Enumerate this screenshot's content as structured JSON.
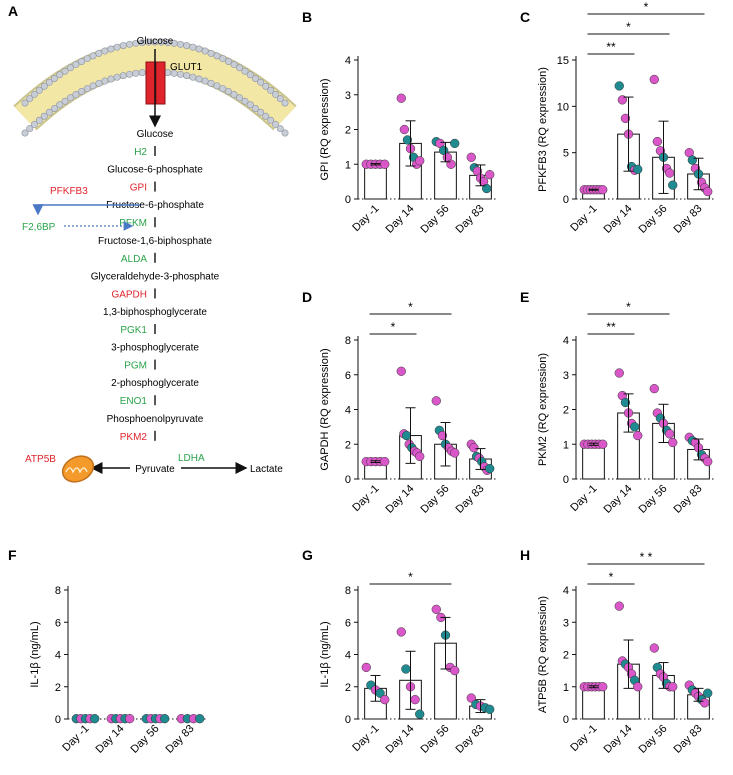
{
  "colors": {
    "pink": "#d957c8",
    "teal": "#1f8a90",
    "red": "#e0242c",
    "green": "#2aa34a",
    "blue": "#4a78c4",
    "membrane": "#f3e7a6",
    "mito": "#f39a2b"
  },
  "pathway": {
    "panel_label": "A",
    "glucose_top": "Glucose",
    "transporter": "GLUT1",
    "steps": [
      {
        "metabolite": "Glucose",
        "enzyme": "H2",
        "enzyme_color": "green"
      },
      {
        "metabolite": "Glucose-6-phosphate",
        "enzyme": "GPI",
        "enzyme_color": "red"
      },
      {
        "metabolite": "Fructose-6-phosphate",
        "enzyme": "PFKM",
        "enzyme_color": "green"
      },
      {
        "metabolite": "Fructose-1,6-biphosphate",
        "enzyme": "ALDA",
        "enzyme_color": "green"
      },
      {
        "metabolite": "Glyceraldehyde-3-phosphate",
        "enzyme": "GAPDH",
        "enzyme_color": "red"
      },
      {
        "metabolite": "1,3-biphosphoglycerate",
        "enzyme": "PGK1",
        "enzyme_color": "green"
      },
      {
        "metabolite": "3-phosphoglycerate",
        "enzyme": "PGM",
        "enzyme_color": "green"
      },
      {
        "metabolite": "2-phosphoglycerate",
        "enzyme": "ENO1",
        "enzyme_color": "green"
      },
      {
        "metabolite": "Phosphoenolpyruvate",
        "enzyme": "PKM2",
        "enzyme_color": "red"
      }
    ],
    "pfkfb3": "PFKFB3",
    "f26bp": "F2,6BP",
    "pyruvate": "Pyruvate",
    "lactate": "Lactate",
    "ldha": "LDHA",
    "atp5b": "ATP5B"
  },
  "chart_data": [
    {
      "id": "B",
      "type": "bar",
      "ylabel": "GPI (RQ expression)",
      "ylim": [
        0,
        4
      ],
      "yticks": [
        0,
        1,
        2,
        3,
        4
      ],
      "categories": [
        "Day -1",
        "Day 14",
        "Day 56",
        "Day 83"
      ],
      "values": [
        1.0,
        1.6,
        1.35,
        0.68
      ],
      "errors": [
        0.02,
        0.65,
        0.28,
        0.3
      ],
      "points": [
        [
          [
            1,
            "pink"
          ],
          [
            1,
            "pink"
          ],
          [
            1,
            "pink"
          ],
          [
            1,
            "pink"
          ],
          [
            1,
            "pink"
          ]
        ],
        [
          [
            2.9,
            "pink"
          ],
          [
            2.0,
            "pink"
          ],
          [
            1.7,
            "teal"
          ],
          [
            1.45,
            "pink"
          ],
          [
            1.2,
            "teal"
          ],
          [
            1.0,
            "pink"
          ],
          [
            1.1,
            "pink"
          ]
        ],
        [
          [
            1.65,
            "teal"
          ],
          [
            1.6,
            "pink"
          ],
          [
            1.4,
            "teal"
          ],
          [
            1.2,
            "pink"
          ],
          [
            1.0,
            "pink"
          ],
          [
            1.6,
            "teal"
          ]
        ],
        [
          [
            1.2,
            "pink"
          ],
          [
            0.9,
            "teal"
          ],
          [
            0.8,
            "pink"
          ],
          [
            0.6,
            "pink"
          ],
          [
            0.5,
            "pink"
          ],
          [
            0.3,
            "teal"
          ],
          [
            0.7,
            "pink"
          ]
        ]
      ],
      "sig": []
    },
    {
      "id": "C",
      "type": "bar",
      "ylabel": "PFKFB3 (RQ expression)",
      "ylim": [
        0,
        15
      ],
      "yticks": [
        0,
        5,
        10,
        15
      ],
      "categories": [
        "Day -1",
        "Day 14",
        "Day 56",
        "Day 83"
      ],
      "values": [
        1.0,
        7.0,
        4.5,
        2.7
      ],
      "errors": [
        0.05,
        4.0,
        3.9,
        1.7
      ],
      "points": [
        [
          [
            1,
            "pink"
          ],
          [
            1,
            "pink"
          ],
          [
            1,
            "pink"
          ],
          [
            1,
            "pink"
          ],
          [
            1,
            "pink"
          ],
          [
            1,
            "pink"
          ],
          [
            1,
            "pink"
          ]
        ],
        [
          [
            12.2,
            "teal"
          ],
          [
            10.7,
            "pink"
          ],
          [
            8.7,
            "pink"
          ],
          [
            7.0,
            "pink"
          ],
          [
            3.5,
            "teal"
          ],
          [
            3.1,
            "pink"
          ],
          [
            3.2,
            "teal"
          ]
        ],
        [
          [
            12.9,
            "pink"
          ],
          [
            6.2,
            "pink"
          ],
          [
            5.2,
            "pink"
          ],
          [
            4.5,
            "teal"
          ],
          [
            3.3,
            "pink"
          ],
          [
            2.8,
            "pink"
          ],
          [
            1.5,
            "teal"
          ]
        ],
        [
          [
            5.0,
            "pink"
          ],
          [
            4.2,
            "teal"
          ],
          [
            3.3,
            "pink"
          ],
          [
            2.7,
            "teal"
          ],
          [
            1.8,
            "pink"
          ],
          [
            1.2,
            "pink"
          ],
          [
            0.8,
            "pink"
          ]
        ]
      ],
      "sig": [
        {
          "from": 0,
          "to": 1,
          "label": "**",
          "level": 0
        },
        {
          "from": 0,
          "to": 2,
          "label": "*",
          "level": 1
        },
        {
          "from": 0,
          "to": 3,
          "label": "*",
          "level": 2
        }
      ]
    },
    {
      "id": "D",
      "type": "bar",
      "ylabel": "GAPDH (RQ  expression)",
      "ylim": [
        0,
        8
      ],
      "yticks": [
        0,
        2,
        4,
        6,
        8
      ],
      "categories": [
        "Day -1",
        "Day 14",
        "Day 56",
        "Day 83"
      ],
      "values": [
        1.0,
        2.5,
        2.0,
        1.15
      ],
      "errors": [
        0.05,
        1.6,
        1.25,
        0.6
      ],
      "points": [
        [
          [
            1,
            "pink"
          ],
          [
            1,
            "pink"
          ],
          [
            1,
            "pink"
          ],
          [
            1,
            "pink"
          ],
          [
            1,
            "pink"
          ]
        ],
        [
          [
            6.2,
            "pink"
          ],
          [
            2.6,
            "pink"
          ],
          [
            2.5,
            "teal"
          ],
          [
            2.0,
            "pink"
          ],
          [
            1.8,
            "teal"
          ],
          [
            1.6,
            "pink"
          ],
          [
            1.5,
            "pink"
          ],
          [
            1.3,
            "pink"
          ]
        ],
        [
          [
            4.5,
            "pink"
          ],
          [
            2.8,
            "teal"
          ],
          [
            2.5,
            "pink"
          ],
          [
            2.0,
            "teal"
          ],
          [
            1.8,
            "pink"
          ],
          [
            1.6,
            "pink"
          ],
          [
            1.5,
            "pink"
          ]
        ],
        [
          [
            2.0,
            "pink"
          ],
          [
            1.8,
            "pink"
          ],
          [
            1.3,
            "teal"
          ],
          [
            1.2,
            "pink"
          ],
          [
            1.0,
            "teal"
          ],
          [
            0.7,
            "pink"
          ],
          [
            0.5,
            "pink"
          ],
          [
            0.6,
            "teal"
          ]
        ]
      ],
      "sig": [
        {
          "from": 0,
          "to": 1,
          "label": "*",
          "level": 0
        },
        {
          "from": 0,
          "to": 2,
          "label": "*",
          "level": 1
        }
      ]
    },
    {
      "id": "E",
      "type": "bar",
      "ylabel": "PKM2 (RQ expression)",
      "ylim": [
        0,
        4
      ],
      "yticks": [
        0,
        1,
        2,
        3,
        4
      ],
      "categories": [
        "Day -1",
        "Day 14",
        "Day 56",
        "Day 83"
      ],
      "values": [
        1.0,
        1.9,
        1.6,
        0.85
      ],
      "errors": [
        0.03,
        0.55,
        0.55,
        0.3
      ],
      "points": [
        [
          [
            1,
            "pink"
          ],
          [
            1,
            "pink"
          ],
          [
            1,
            "pink"
          ],
          [
            1,
            "pink"
          ],
          [
            1,
            "pink"
          ],
          [
            1,
            "pink"
          ]
        ],
        [
          [
            3.05,
            "pink"
          ],
          [
            2.4,
            "pink"
          ],
          [
            2.2,
            "teal"
          ],
          [
            1.9,
            "pink"
          ],
          [
            1.6,
            "pink"
          ],
          [
            1.5,
            "teal"
          ],
          [
            1.25,
            "pink"
          ]
        ],
        [
          [
            2.6,
            "pink"
          ],
          [
            1.9,
            "pink"
          ],
          [
            1.75,
            "teal"
          ],
          [
            1.6,
            "pink"
          ],
          [
            1.4,
            "teal"
          ],
          [
            1.3,
            "pink"
          ],
          [
            1.05,
            "pink"
          ]
        ],
        [
          [
            1.2,
            "pink"
          ],
          [
            1.1,
            "teal"
          ],
          [
            1.05,
            "pink"
          ],
          [
            0.9,
            "pink"
          ],
          [
            0.7,
            "teal"
          ],
          [
            0.6,
            "pink"
          ],
          [
            0.5,
            "pink"
          ]
        ]
      ],
      "sig": [
        {
          "from": 0,
          "to": 1,
          "label": "**",
          "level": 0
        },
        {
          "from": 0,
          "to": 2,
          "label": "*",
          "level": 1
        }
      ]
    },
    {
      "id": "F",
      "type": "bar",
      "ylabel": "IL-1β (ng/mL)",
      "ylim": [
        0,
        8
      ],
      "yticks": [
        0,
        2,
        4,
        6,
        8
      ],
      "categories": [
        "Day -1",
        "Day 14",
        "Day 56",
        "Day 83"
      ],
      "values": [
        0.02,
        0.02,
        0.02,
        0.02
      ],
      "errors": [
        0,
        0,
        0,
        0
      ],
      "points": [
        [
          [
            0.02,
            "teal"
          ],
          [
            0.02,
            "pink"
          ],
          [
            0.02,
            "teal"
          ],
          [
            0.02,
            "pink"
          ],
          [
            0.02,
            "teal"
          ]
        ],
        [
          [
            0.02,
            "pink"
          ],
          [
            0.02,
            "teal"
          ],
          [
            0.02,
            "pink"
          ],
          [
            0.02,
            "teal"
          ],
          [
            0.02,
            "pink"
          ]
        ],
        [
          [
            0.02,
            "teal"
          ],
          [
            0.02,
            "pink"
          ],
          [
            0.02,
            "teal"
          ],
          [
            0.02,
            "pink"
          ],
          [
            0.02,
            "teal"
          ]
        ],
        [
          [
            0.02,
            "pink"
          ],
          [
            0.02,
            "teal"
          ],
          [
            0.02,
            "pink"
          ],
          [
            0.02,
            "teal"
          ]
        ]
      ],
      "sig": []
    },
    {
      "id": "G",
      "type": "bar",
      "ylabel": "IL-1β (ng/mL)",
      "ylim": [
        0,
        8
      ],
      "yticks": [
        0,
        2,
        4,
        6,
        8
      ],
      "categories": [
        "Day -1",
        "Day 14",
        "Day 56",
        "Day 83"
      ],
      "values": [
        1.9,
        2.4,
        4.7,
        0.8
      ],
      "errors": [
        0.8,
        1.8,
        1.6,
        0.4
      ],
      "points": [
        [
          [
            3.2,
            "pink"
          ],
          [
            2.1,
            "teal"
          ],
          [
            1.8,
            "pink"
          ],
          [
            1.6,
            "teal"
          ],
          [
            1.2,
            "pink"
          ]
        ],
        [
          [
            5.4,
            "pink"
          ],
          [
            3.1,
            "teal"
          ],
          [
            2.0,
            "pink"
          ],
          [
            1.2,
            "pink"
          ],
          [
            0.3,
            "teal"
          ]
        ],
        [
          [
            6.8,
            "pink"
          ],
          [
            6.3,
            "pink"
          ],
          [
            5.2,
            "teal"
          ],
          [
            3.2,
            "pink"
          ],
          [
            3.0,
            "pink"
          ]
        ],
        [
          [
            1.3,
            "pink"
          ],
          [
            0.9,
            "teal"
          ],
          [
            0.8,
            "pink"
          ],
          [
            0.7,
            "teal"
          ],
          [
            0.6,
            "teal"
          ]
        ]
      ],
      "sig": [
        {
          "from": 0,
          "to": 2,
          "label": "*",
          "level": 0
        }
      ]
    },
    {
      "id": "H",
      "type": "bar",
      "ylabel": "ATP5B (RQ expression)",
      "ylim": [
        0,
        4
      ],
      "yticks": [
        0,
        1,
        2,
        3,
        4
      ],
      "categories": [
        "Day -1",
        "Day 14",
        "Day 56",
        "Day 83"
      ],
      "values": [
        1.0,
        1.7,
        1.35,
        0.75
      ],
      "errors": [
        0.03,
        0.75,
        0.4,
        0.2
      ],
      "points": [
        [
          [
            1,
            "pink"
          ],
          [
            1,
            "pink"
          ],
          [
            1,
            "pink"
          ],
          [
            1,
            "pink"
          ],
          [
            1,
            "pink"
          ],
          [
            1,
            "pink"
          ]
        ],
        [
          [
            3.5,
            "pink"
          ],
          [
            1.8,
            "pink"
          ],
          [
            1.7,
            "teal"
          ],
          [
            1.6,
            "pink"
          ],
          [
            1.4,
            "pink"
          ],
          [
            1.2,
            "teal"
          ],
          [
            1.0,
            "pink"
          ]
        ],
        [
          [
            2.2,
            "pink"
          ],
          [
            1.6,
            "teal"
          ],
          [
            1.4,
            "pink"
          ],
          [
            1.3,
            "pink"
          ],
          [
            1.1,
            "teal"
          ],
          [
            1.0,
            "pink"
          ],
          [
            1.0,
            "pink"
          ]
        ],
        [
          [
            1.05,
            "pink"
          ],
          [
            0.9,
            "teal"
          ],
          [
            0.8,
            "pink"
          ],
          [
            0.7,
            "pink"
          ],
          [
            0.6,
            "teal"
          ],
          [
            0.5,
            "pink"
          ],
          [
            0.8,
            "teal"
          ]
        ]
      ],
      "sig": [
        {
          "from": 0,
          "to": 1,
          "label": "*",
          "level": 0
        },
        {
          "from": 0,
          "to": 3,
          "label": "* *",
          "level": 1
        }
      ]
    }
  ]
}
